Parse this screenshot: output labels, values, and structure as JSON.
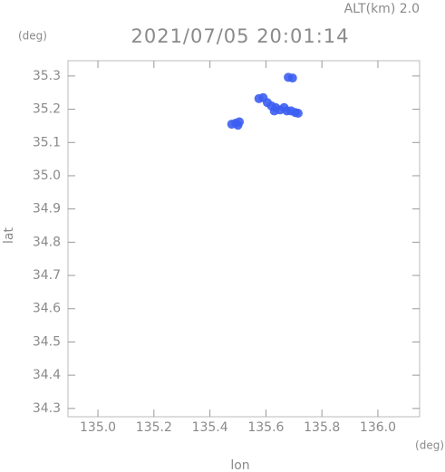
{
  "chart_data": {
    "type": "scatter",
    "title": "2021/07/05 20:01:14",
    "subtitle": "ALT(km) 2.0",
    "y_unit": "(deg)",
    "x_unit": "(deg)",
    "xlabel": "lon",
    "ylabel": "lat",
    "xlim": [
      134.893,
      136.149
    ],
    "ylim": [
      34.275,
      35.346
    ],
    "xticks": [
      {
        "value": 135,
        "label": "135.0"
      },
      135.2,
      135.4,
      135.6,
      135.8,
      {
        "value": 136,
        "label": "136.0"
      }
    ],
    "yticks": [
      34.3,
      34.4,
      34.5,
      34.6,
      34.7,
      34.8,
      34.9,
      {
        "value": 35,
        "label": "35.0"
      },
      35.1,
      35.2,
      35.3
    ],
    "color": "#3c5ef2",
    "x": [
      135.478,
      135.492,
      135.505,
      135.5,
      135.575,
      135.59,
      135.605,
      135.62,
      135.635,
      135.65,
      135.665,
      135.675,
      135.69,
      135.705,
      135.715,
      135.63,
      135.68,
      135.695
    ],
    "values": [
      35.155,
      35.158,
      35.162,
      35.152,
      35.232,
      35.235,
      35.22,
      35.21,
      35.205,
      35.198,
      35.205,
      35.195,
      35.195,
      35.19,
      35.188,
      35.195,
      35.296,
      35.294
    ]
  }
}
